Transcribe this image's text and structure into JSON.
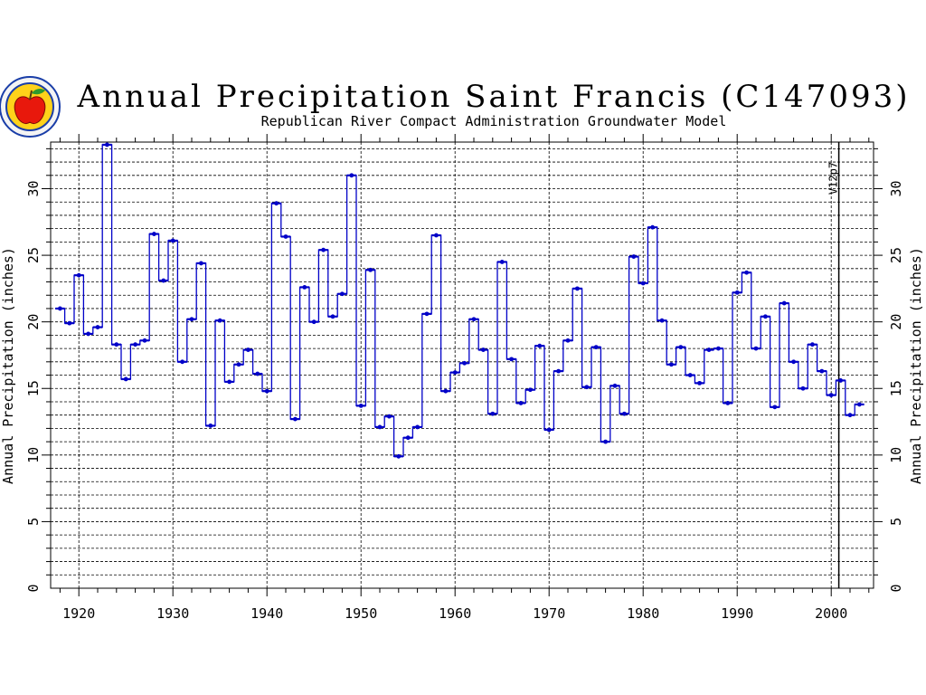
{
  "logo": {
    "icon": "apple-logo-icon",
    "apple_color": "#e8180c",
    "ring_color": "#1a3ea8",
    "leaf_color": "#2e9a2e"
  },
  "chart_data": {
    "type": "line",
    "step": true,
    "title": "Annual Precipitation Saint Francis (C147093)",
    "subtitle": "Republican River Compact Administration Groundwater Model",
    "ylabel": "Annual Precipitation (inches)",
    "ylabel_right": "Annual Precipitation (inches)",
    "xlim": [
      1917,
      2004.5
    ],
    "ylim": [
      0,
      33.5
    ],
    "x_ticks": [
      1920,
      1930,
      1940,
      1950,
      1960,
      1970,
      1980,
      1990,
      2000
    ],
    "x_tick_labels": [
      "1920",
      "1930",
      "1940",
      "1950",
      "1960",
      "1970",
      "1980",
      "1990",
      "2000"
    ],
    "y_ticks": [
      0,
      5,
      10,
      15,
      20,
      25,
      30
    ],
    "y_tick_labels": [
      "0",
      "5",
      "10",
      "15",
      "20",
      "25",
      "30"
    ],
    "grid": true,
    "series_color": "#0000c8",
    "marker": {
      "x": 2001,
      "label": "V12p7"
    },
    "x": [
      1918,
      1919,
      1920,
      1921,
      1922,
      1923,
      1924,
      1925,
      1926,
      1927,
      1928,
      1929,
      1930,
      1931,
      1932,
      1933,
      1934,
      1935,
      1936,
      1937,
      1938,
      1939,
      1940,
      1941,
      1942,
      1943,
      1944,
      1945,
      1946,
      1947,
      1948,
      1949,
      1950,
      1951,
      1952,
      1953,
      1954,
      1955,
      1956,
      1957,
      1958,
      1959,
      1960,
      1961,
      1962,
      1963,
      1964,
      1965,
      1966,
      1967,
      1968,
      1969,
      1970,
      1971,
      1972,
      1973,
      1974,
      1975,
      1976,
      1977,
      1978,
      1979,
      1980,
      1981,
      1982,
      1983,
      1984,
      1985,
      1986,
      1987,
      1988,
      1989,
      1990,
      1991,
      1992,
      1993,
      1994,
      1995,
      1996,
      1997,
      1998,
      1999,
      2000,
      2001,
      2002,
      2003
    ],
    "values": [
      21.0,
      19.9,
      23.5,
      19.1,
      19.6,
      33.3,
      18.3,
      15.7,
      18.3,
      18.6,
      26.6,
      23.1,
      26.1,
      17.0,
      20.2,
      24.4,
      12.2,
      20.1,
      15.5,
      16.8,
      17.9,
      16.1,
      14.8,
      28.9,
      26.4,
      12.7,
      22.6,
      20.0,
      25.4,
      20.4,
      22.1,
      31.0,
      13.7,
      23.9,
      12.1,
      12.9,
      9.9,
      11.3,
      12.1,
      20.6,
      26.5,
      14.8,
      16.2,
      16.9,
      20.2,
      17.9,
      13.1,
      24.5,
      17.2,
      13.9,
      14.9,
      18.2,
      11.9,
      16.3,
      18.6,
      22.5,
      15.1,
      18.1,
      11.0,
      15.2,
      13.1,
      24.9,
      22.9,
      27.1,
      20.1,
      16.8,
      18.1,
      16.0,
      15.4,
      17.9,
      18.0,
      13.9,
      22.2,
      23.7,
      18.0,
      20.4,
      13.6,
      21.4,
      17.0,
      15.0,
      18.3,
      16.3,
      14.5,
      15.6,
      13.0,
      13.8
    ]
  }
}
